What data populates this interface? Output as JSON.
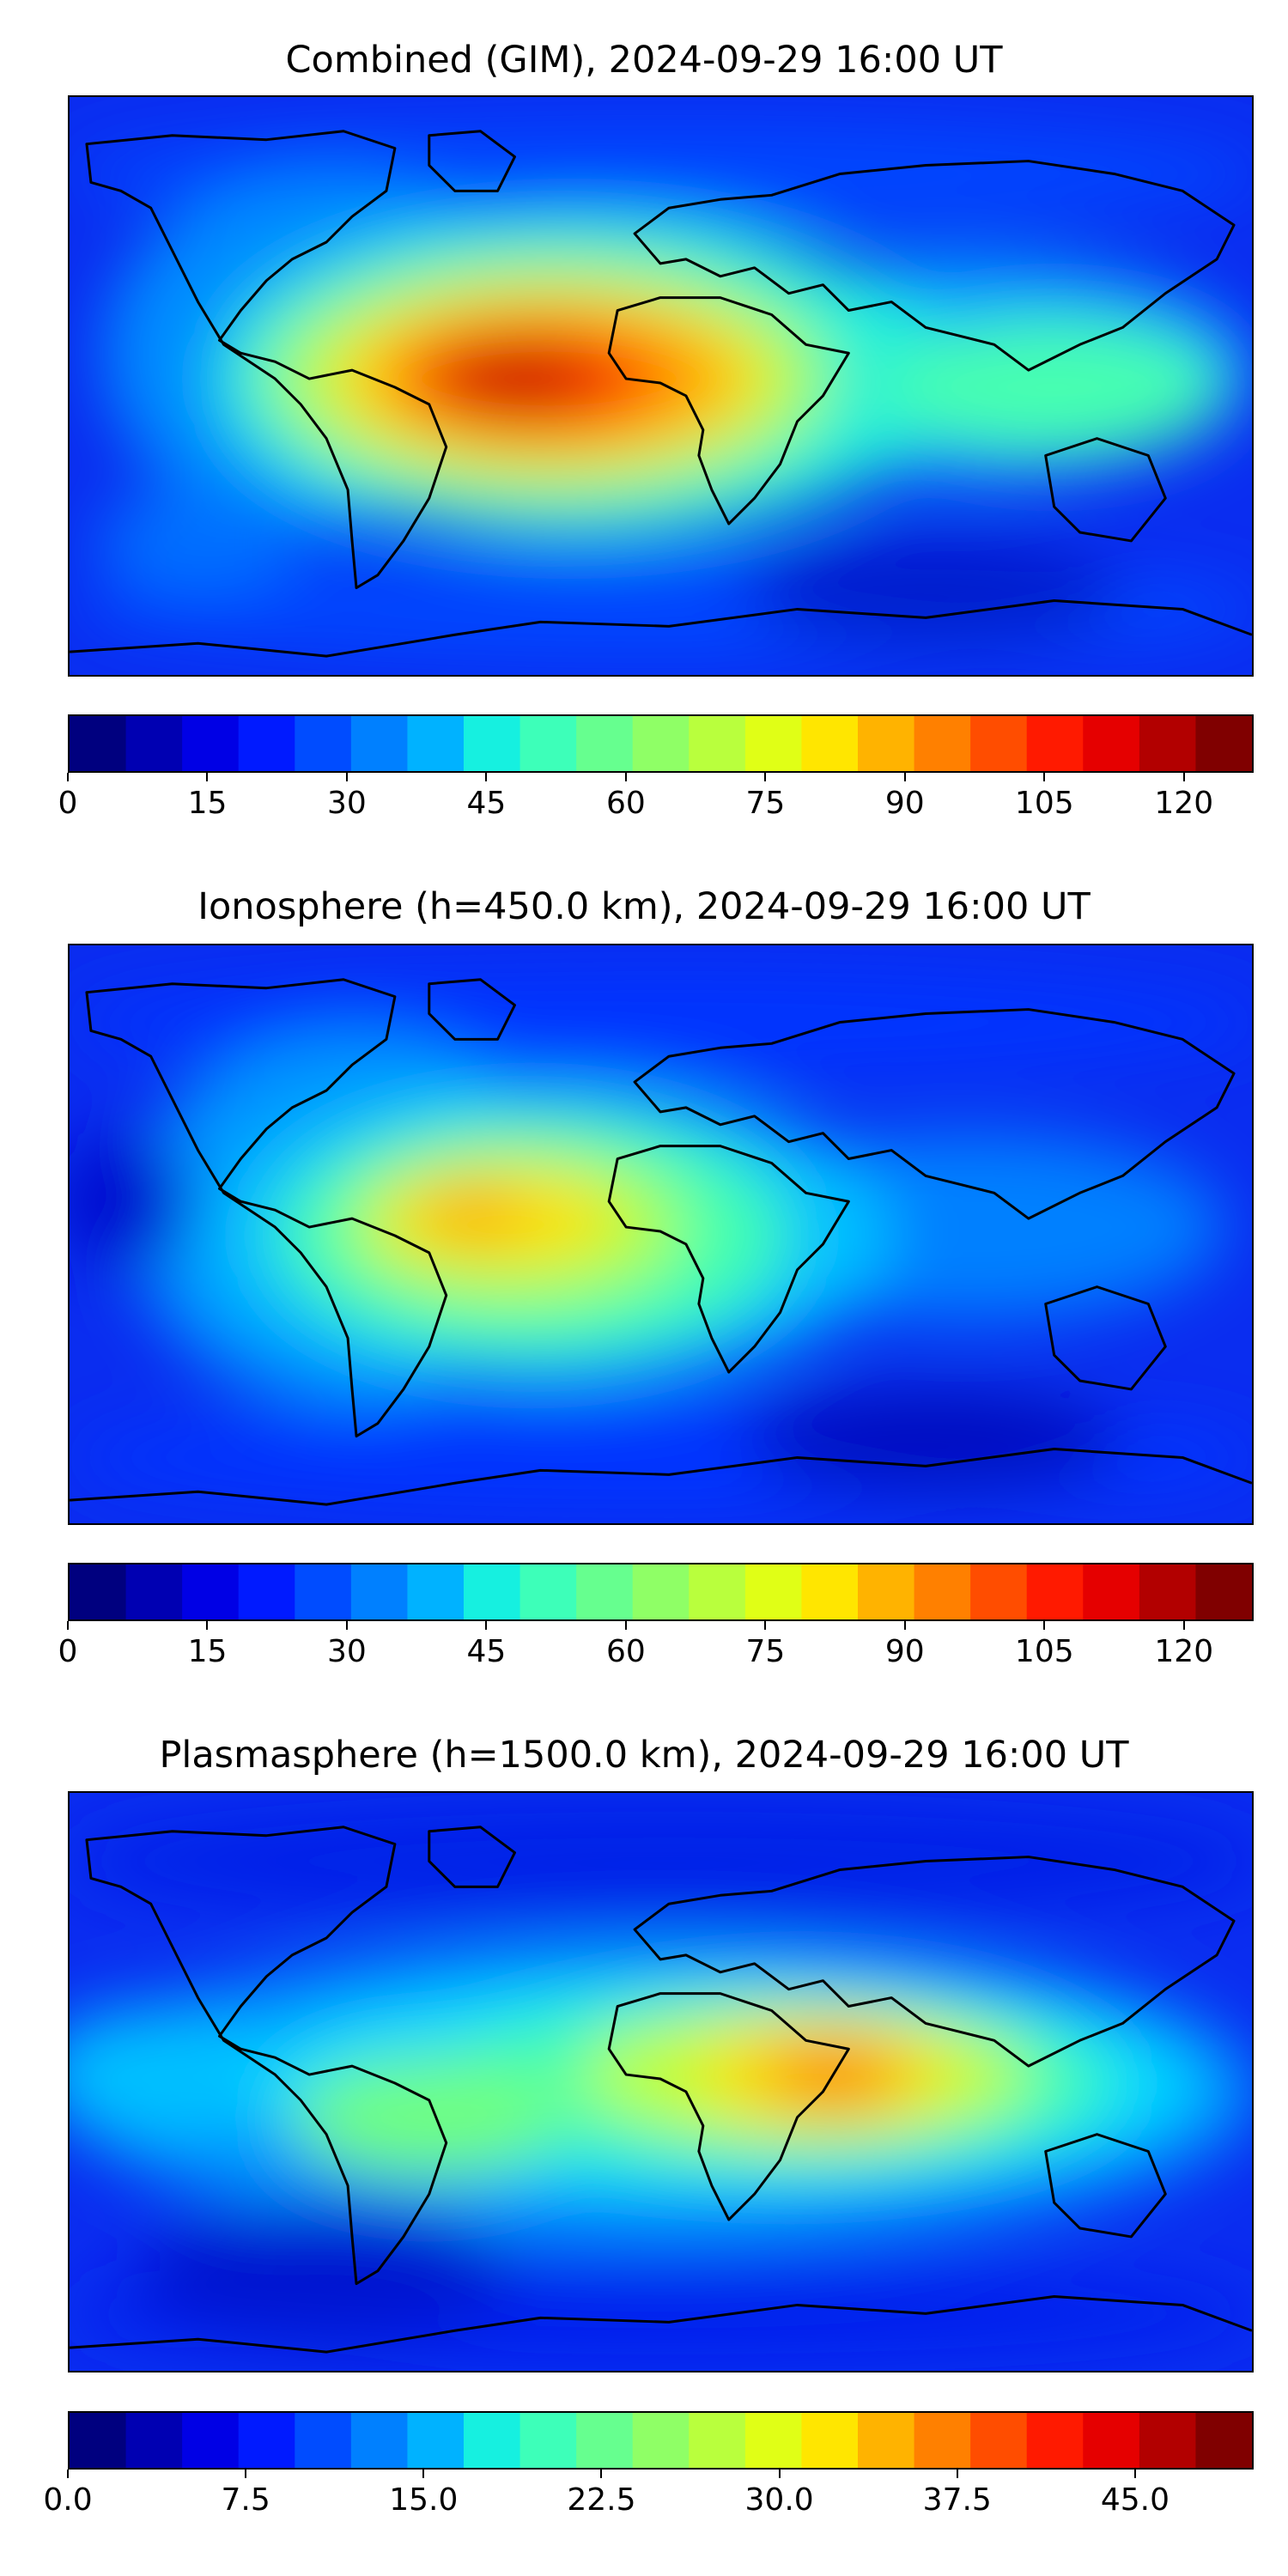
{
  "panels": [
    {
      "title": "Combined (GIM), 2024-09-29 16:00 UT",
      "variant": "combined",
      "colorbar_max": 127.5,
      "colorbar_ticks": [
        "0",
        "15",
        "30",
        "45",
        "60",
        "75",
        "90",
        "105",
        "120"
      ]
    },
    {
      "title": "Ionosphere  (h=450.0 km), 2024-09-29 16:00 UT",
      "variant": "iono",
      "colorbar_max": 127.5,
      "colorbar_ticks": [
        "0",
        "15",
        "30",
        "45",
        "60",
        "75",
        "90",
        "105",
        "120"
      ]
    },
    {
      "title": "Plasmasphere (h=1500.0 km), 2024-09-29 16:00 UT",
      "variant": "plasma",
      "colorbar_max": 50,
      "colorbar_ticks": [
        "0.0",
        "7.5",
        "15.0",
        "22.5",
        "30.0",
        "37.5",
        "45.0"
      ]
    }
  ],
  "colormap": [
    "#00007f",
    "#0000b2",
    "#0000e5",
    "#001aff",
    "#004cff",
    "#0080ff",
    "#00b2ff",
    "#16f0e0",
    "#3dffb9",
    "#66ff8f",
    "#8fff66",
    "#b9ff3d",
    "#e0ff16",
    "#ffe600",
    "#ffb300",
    "#ff8000",
    "#ff4d00",
    "#ff1a00",
    "#e50000",
    "#b20000",
    "#800000"
  ],
  "colors": {
    "ocean_base": "#0022ee",
    "coast": "#000000"
  }
}
